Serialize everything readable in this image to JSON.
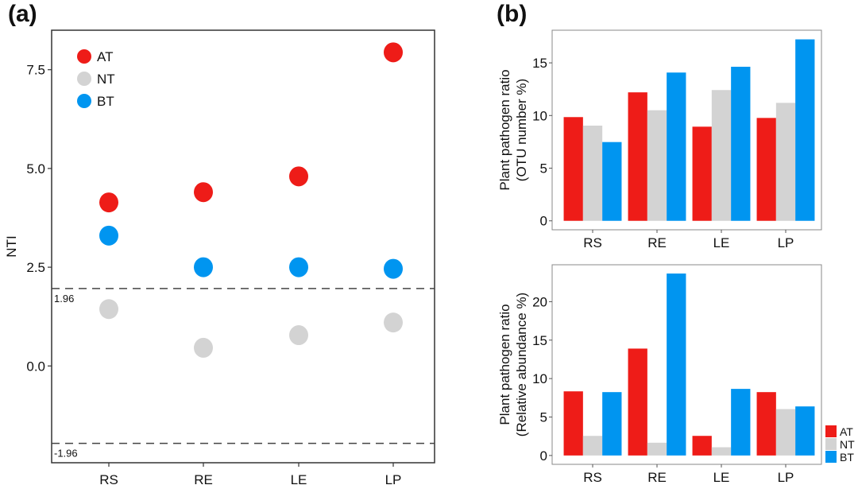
{
  "colors": {
    "AT": "#ee1c18",
    "NT": "#d3d3d3",
    "BT": "#0095f0"
  },
  "chart_data": [
    {
      "id": "a",
      "panel_label": "(a)",
      "type": "scatter",
      "title": "",
      "xlabel": "",
      "ylabel": "NTI",
      "categories": [
        "RS",
        "RE",
        "LE",
        "LP"
      ],
      "yticks": [
        0.0,
        2.5,
        5.0,
        7.5
      ],
      "ytick_labels": [
        "0.0",
        "2.5",
        "5.0",
        "7.5"
      ],
      "ylim": [
        -2.45,
        8.5
      ],
      "reference_lines": [
        {
          "value": 1.96,
          "label": "1.96",
          "style": "dashed"
        },
        {
          "value": -1.96,
          "label": "-1.96",
          "style": "dashed"
        }
      ],
      "legend": {
        "position": "top-left",
        "entries": [
          "AT",
          "NT",
          "BT"
        ]
      },
      "series": [
        {
          "name": "AT",
          "values": [
            4.14,
            4.4,
            4.8,
            7.94
          ]
        },
        {
          "name": "NT",
          "values": [
            1.44,
            0.46,
            0.78,
            1.1
          ]
        },
        {
          "name": "BT",
          "values": [
            3.3,
            2.5,
            2.5,
            2.46
          ]
        }
      ],
      "grid": false
    },
    {
      "id": "b-top",
      "panel_label": "(b)",
      "type": "bar",
      "title": "",
      "xlabel": "",
      "ylabel": "Plant pathogen ratio (OTU number %)",
      "ylabel_lines": [
        "Plant pathogen ratio",
        "(OTU number %)"
      ],
      "categories": [
        "RS",
        "RE",
        "LE",
        "LP"
      ],
      "yticks": [
        0,
        5,
        10,
        15
      ],
      "ytick_labels": [
        "0",
        "5",
        "10",
        "15"
      ],
      "ylim": [
        -0.85,
        18.1
      ],
      "series": [
        {
          "name": "AT",
          "values": [
            9.85,
            12.2,
            8.94,
            9.77
          ]
        },
        {
          "name": "NT",
          "values": [
            9.04,
            10.5,
            12.42,
            11.2
          ]
        },
        {
          "name": "BT",
          "values": [
            7.48,
            14.08,
            14.63,
            17.23
          ]
        }
      ],
      "grid": false
    },
    {
      "id": "b-bottom",
      "panel_label": "",
      "type": "bar",
      "title": "",
      "xlabel": "",
      "ylabel": "Plant pathogen ratio (Relative abundance %)",
      "ylabel_lines": [
        "Plant pathogen ratio",
        "(Relative abundance %)"
      ],
      "categories": [
        "RS",
        "RE",
        "LE",
        "LP"
      ],
      "yticks": [
        0,
        5,
        10,
        15,
        20
      ],
      "ytick_labels": [
        "0",
        "5",
        "10",
        "15",
        "20"
      ],
      "ylim": [
        -1.15,
        24.8
      ],
      "legend": {
        "position": "bottom-right-outside",
        "entries": [
          "AT",
          "NT",
          "BT"
        ]
      },
      "series": [
        {
          "name": "AT",
          "values": [
            8.34,
            13.9,
            2.55,
            8.24
          ]
        },
        {
          "name": "NT",
          "values": [
            2.55,
            1.66,
            1.07,
            6.03
          ]
        },
        {
          "name": "BT",
          "values": [
            8.24,
            23.66,
            8.66,
            6.38
          ]
        }
      ],
      "grid": false
    }
  ]
}
